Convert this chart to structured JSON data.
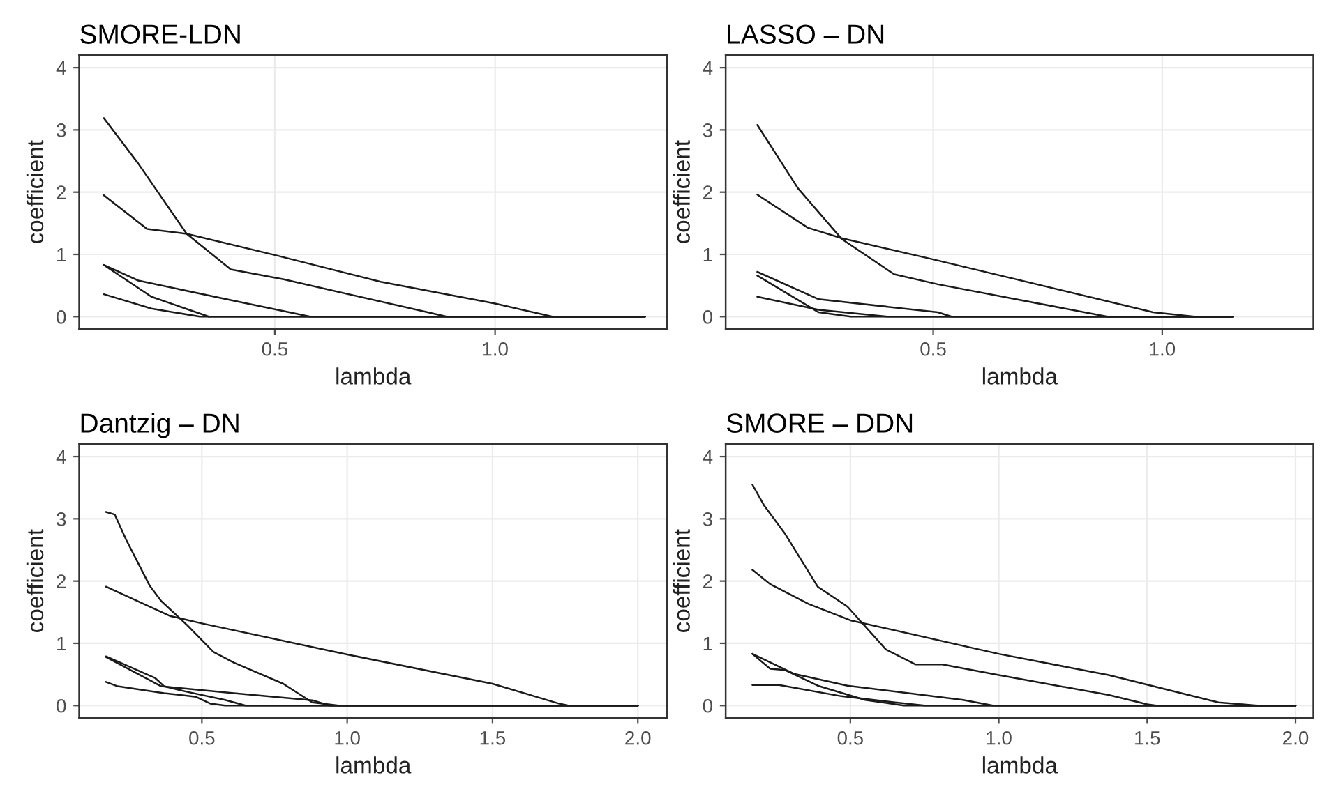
{
  "chart_data": [
    {
      "type": "line",
      "title": "SMORE-LDN",
      "xlabel": "lambda",
      "ylabel": "coefficient",
      "xlim": [
        0.056,
        1.39
      ],
      "ylim": [
        -0.2,
        4.2
      ],
      "xticks": [
        {
          "value": 0.5,
          "label": "0.5"
        },
        {
          "value": 1.0,
          "label": "1.0"
        }
      ],
      "yticks": [
        0,
        1,
        2,
        3,
        4
      ],
      "grid": true,
      "line_style": "solid",
      "series": [
        {
          "color": "#1a1a1a",
          "x": [
            0.112,
            0.19,
            0.3,
            0.4,
            0.52,
            0.89,
            1.34
          ],
          "values": [
            3.19,
            2.46,
            1.33,
            0.76,
            0.6,
            0,
            0
          ]
        },
        {
          "color": "#1a1a1a",
          "x": [
            0.112,
            0.21,
            0.3,
            0.5,
            0.74,
            1.0,
            1.13,
            1.34
          ],
          "values": [
            1.95,
            1.41,
            1.33,
            0.99,
            0.56,
            0.21,
            0,
            0
          ]
        },
        {
          "color": "#1a1a1a",
          "x": [
            0.112,
            0.22,
            0.35,
            1.34
          ],
          "values": [
            0.83,
            0.32,
            0,
            0
          ]
        },
        {
          "color": "#1a1a1a",
          "x": [
            0.112,
            0.19,
            0.39,
            0.58,
            1.34
          ],
          "values": [
            0.83,
            0.58,
            0.28,
            0,
            0
          ]
        },
        {
          "color": "#1a1a1a",
          "x": [
            0.112,
            0.22,
            0.33,
            1.34
          ],
          "values": [
            0.36,
            0.13,
            0,
            0
          ]
        }
      ]
    },
    {
      "type": "line",
      "title": "LASSO – DN",
      "xlabel": "lambda",
      "ylabel": "coefficient",
      "xlim": [
        0.047,
        1.33
      ],
      "ylim": [
        -0.2,
        4.2
      ],
      "xticks": [
        {
          "value": 0.5,
          "label": "0.5"
        },
        {
          "value": 1.0,
          "label": "1.0"
        }
      ],
      "yticks": [
        0,
        1,
        2,
        3,
        4
      ],
      "grid": true,
      "line_style": "solid",
      "series": [
        {
          "color": "#1a1a1a",
          "x": [
            0.116,
            0.205,
            0.3,
            0.415,
            0.51,
            0.88,
            1.155
          ],
          "values": [
            3.08,
            2.06,
            1.25,
            0.68,
            0.52,
            0,
            0
          ]
        },
        {
          "color": "#1a1a1a",
          "x": [
            0.116,
            0.226,
            0.3,
            0.5,
            0.98,
            1.07,
            1.155
          ],
          "values": [
            1.96,
            1.43,
            1.26,
            0.92,
            0.07,
            0,
            0
          ]
        },
        {
          "color": "#1a1a1a",
          "x": [
            0.116,
            0.25,
            0.51,
            0.54,
            1.155
          ],
          "values": [
            0.72,
            0.28,
            0.07,
            0,
            0
          ]
        },
        {
          "color": "#1a1a1a",
          "x": [
            0.116,
            0.25,
            0.32,
            1.155
          ],
          "values": [
            0.66,
            0.07,
            0,
            0
          ]
        },
        {
          "color": "#1a1a1a",
          "x": [
            0.116,
            0.25,
            0.4,
            1.155
          ],
          "values": [
            0.32,
            0.11,
            0,
            0
          ]
        }
      ]
    },
    {
      "type": "line",
      "title": "Dantzig – DN",
      "xlabel": "lambda",
      "ylabel": "coefficient",
      "xlim": [
        0.078,
        2.1
      ],
      "ylim": [
        -0.2,
        4.2
      ],
      "xticks": [
        {
          "value": 0.5,
          "label": "0.5"
        },
        {
          "value": 1.0,
          "label": "1.0"
        },
        {
          "value": 1.5,
          "label": "1.5"
        },
        {
          "value": 2.0,
          "label": "2.0"
        }
      ],
      "yticks": [
        0,
        1,
        2,
        3,
        4
      ],
      "grid": true,
      "line_style": "solid",
      "series": [
        {
          "color": "#1a1a1a",
          "x": [
            0.17,
            0.2,
            0.24,
            0.32,
            0.36,
            0.45,
            0.54,
            0.61,
            0.78,
            0.88,
            0.97,
            2.0
          ],
          "values": [
            3.11,
            3.07,
            2.66,
            1.93,
            1.68,
            1.29,
            0.86,
            0.69,
            0.35,
            0.05,
            0,
            0
          ]
        },
        {
          "color": "#1a1a1a",
          "x": [
            0.17,
            0.39,
            0.5,
            1.0,
            1.5,
            1.73,
            1.76,
            2.0
          ],
          "values": [
            1.91,
            1.44,
            1.32,
            0.82,
            0.35,
            0.03,
            0,
            0
          ]
        },
        {
          "color": "#1a1a1a",
          "x": [
            0.17,
            0.34,
            0.37,
            0.45,
            0.58,
            0.65,
            2.0
          ],
          "values": [
            0.79,
            0.44,
            0.31,
            0.22,
            0.09,
            0,
            0
          ]
        },
        {
          "color": "#1a1a1a",
          "x": [
            0.17,
            0.36,
            0.61,
            0.88,
            0.94,
            2.0
          ],
          "values": [
            0.78,
            0.31,
            0.2,
            0.085,
            0,
            0
          ]
        },
        {
          "color": "#1a1a1a",
          "x": [
            0.17,
            0.21,
            0.37,
            0.48,
            0.53,
            0.58,
            2.0
          ],
          "values": [
            0.38,
            0.31,
            0.2,
            0.14,
            0.03,
            0,
            0
          ]
        }
      ]
    },
    {
      "type": "line",
      "title": "SMORE – DDN",
      "xlabel": "lambda",
      "ylabel": "coefficient",
      "xlim": [
        0.08,
        2.06
      ],
      "ylim": [
        -0.2,
        4.2
      ],
      "xticks": [
        {
          "value": 0.5,
          "label": "0.5"
        },
        {
          "value": 1.0,
          "label": "1.0"
        },
        {
          "value": 1.5,
          "label": "1.5"
        },
        {
          "value": 2.0,
          "label": "2.0"
        }
      ],
      "yticks": [
        0,
        1,
        2,
        3,
        4
      ],
      "grid": true,
      "line_style": "solid",
      "series": [
        {
          "color": "#1a1a1a",
          "x": [
            0.17,
            0.21,
            0.28,
            0.39,
            0.49,
            0.62,
            0.72,
            0.81,
            1.0,
            1.37,
            1.5,
            1.53,
            2.0
          ],
          "values": [
            3.55,
            3.21,
            2.76,
            1.91,
            1.59,
            0.9,
            0.66,
            0.66,
            0.49,
            0.17,
            0.02,
            0,
            0
          ]
        },
        {
          "color": "#1a1a1a",
          "x": [
            0.17,
            0.23,
            0.36,
            0.5,
            1.0,
            1.37,
            1.74,
            1.87,
            2.0
          ],
          "values": [
            2.18,
            1.95,
            1.63,
            1.37,
            0.83,
            0.49,
            0.05,
            0,
            0
          ]
        },
        {
          "color": "#1a1a1a",
          "x": [
            0.17,
            0.23,
            0.28,
            0.39,
            0.55,
            0.68,
            2.0
          ],
          "values": [
            0.83,
            0.59,
            0.57,
            0.32,
            0.09,
            0,
            0
          ]
        },
        {
          "color": "#1a1a1a",
          "x": [
            0.17,
            0.31,
            0.49,
            0.88,
            0.98,
            2.0
          ],
          "values": [
            0.83,
            0.51,
            0.32,
            0.09,
            0,
            0
          ]
        },
        {
          "color": "#1a1a1a",
          "x": [
            0.17,
            0.26,
            0.47,
            0.65,
            0.75,
            2.0
          ],
          "values": [
            0.33,
            0.33,
            0.15,
            0.05,
            0,
            0
          ]
        }
      ]
    }
  ]
}
